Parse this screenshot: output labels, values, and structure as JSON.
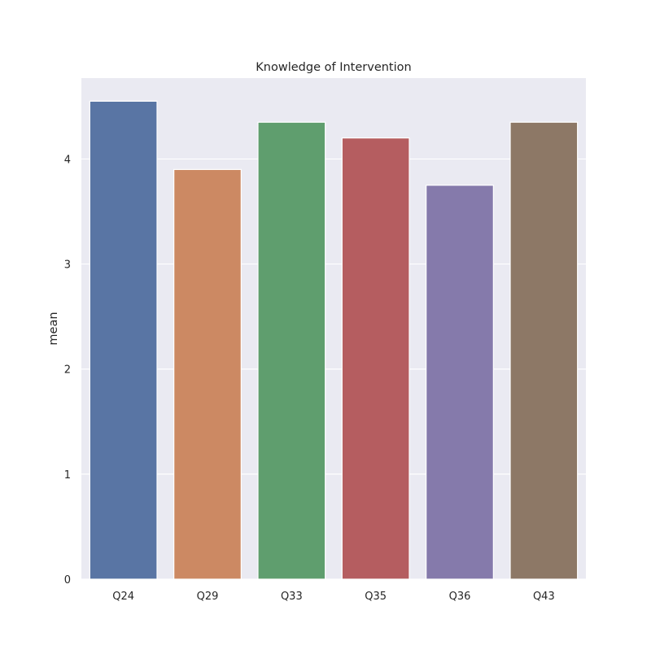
{
  "chart_data": {
    "type": "bar",
    "title": "Knowledge of Intervention",
    "xlabel": "",
    "ylabel": "mean",
    "categories": [
      "Q24",
      "Q29",
      "Q33",
      "Q35",
      "Q36",
      "Q43"
    ],
    "values": [
      4.55,
      3.9,
      4.35,
      4.2,
      3.75,
      4.35
    ],
    "colors": [
      "#5975a4",
      "#cc8963",
      "#5f9e6e",
      "#b55d60",
      "#857aab",
      "#8d7866"
    ],
    "ylim": [
      0,
      4.77
    ],
    "yticks": [
      0,
      1,
      2,
      3,
      4
    ],
    "grid": true,
    "plot_background": "#eaeaf2",
    "grid_color": "#ffffff"
  }
}
